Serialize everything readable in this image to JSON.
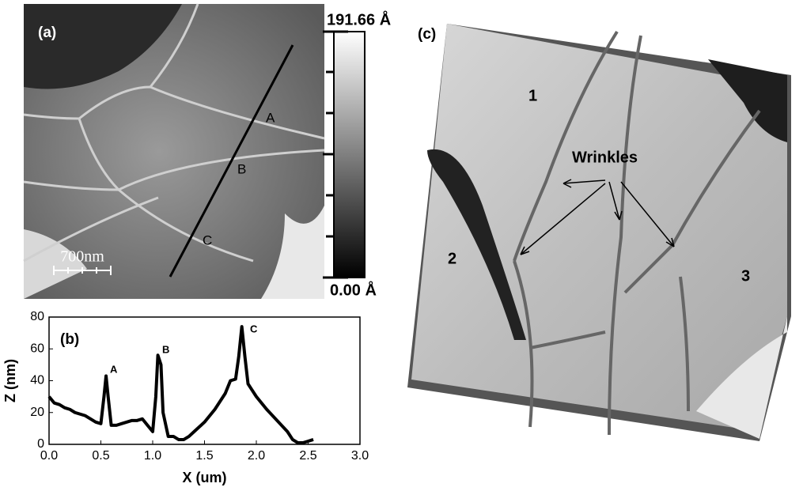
{
  "panel_a": {
    "label": "(a)",
    "scale_bar": "700nm",
    "colorbar_max": "191.66 Å",
    "colorbar_min": "0.00 Å",
    "line_markers": [
      "A",
      "B",
      "C"
    ]
  },
  "chart_data": {
    "type": "line",
    "panel_label": "(b)",
    "xlabel": "X (um)",
    "ylabel": "Z (nm)",
    "x": [
      0.0,
      0.05,
      0.1,
      0.15,
      0.2,
      0.25,
      0.3,
      0.35,
      0.4,
      0.45,
      0.5,
      0.53,
      0.55,
      0.57,
      0.6,
      0.65,
      0.7,
      0.75,
      0.8,
      0.85,
      0.9,
      0.95,
      1.0,
      1.03,
      1.05,
      1.08,
      1.1,
      1.15,
      1.2,
      1.25,
      1.3,
      1.35,
      1.4,
      1.5,
      1.6,
      1.7,
      1.75,
      1.8,
      1.83,
      1.86,
      1.89,
      1.92,
      1.95,
      2.0,
      2.1,
      2.2,
      2.3,
      2.35,
      2.4,
      2.45,
      2.5,
      2.55
    ],
    "series": [
      {
        "color": "#000000",
        "values": [
          30,
          26,
          25,
          23,
          22,
          20,
          19,
          18,
          16,
          14,
          13,
          30,
          43,
          30,
          12,
          12,
          13,
          14,
          15,
          15,
          16,
          12,
          8,
          30,
          56,
          50,
          20,
          5,
          5,
          3,
          3,
          5,
          8,
          14,
          22,
          32,
          40,
          41,
          55,
          74,
          55,
          38,
          35,
          30,
          22,
          15,
          8,
          3,
          1,
          1,
          2,
          3
        ]
      }
    ],
    "annotations": [
      "A",
      "B",
      "C"
    ],
    "xlim": [
      0,
      3
    ],
    "ylim": [
      0,
      80
    ],
    "xticks": [
      {
        "value": 0,
        "label": "0.0"
      },
      {
        "value": 0.5,
        "label": "0.5"
      },
      {
        "value": 1,
        "label": "1.0"
      },
      {
        "value": 1.5,
        "label": "1.5"
      },
      {
        "value": 2,
        "label": "2.0"
      },
      {
        "value": 2.5,
        "label": "2.5"
      },
      {
        "value": 3,
        "label": "3.0"
      }
    ],
    "yticks": [
      0,
      20,
      40,
      60,
      80
    ]
  },
  "panel_c": {
    "label": "(c)",
    "annotation": "Wrinkles",
    "regions": [
      "1",
      "2",
      "3"
    ]
  }
}
